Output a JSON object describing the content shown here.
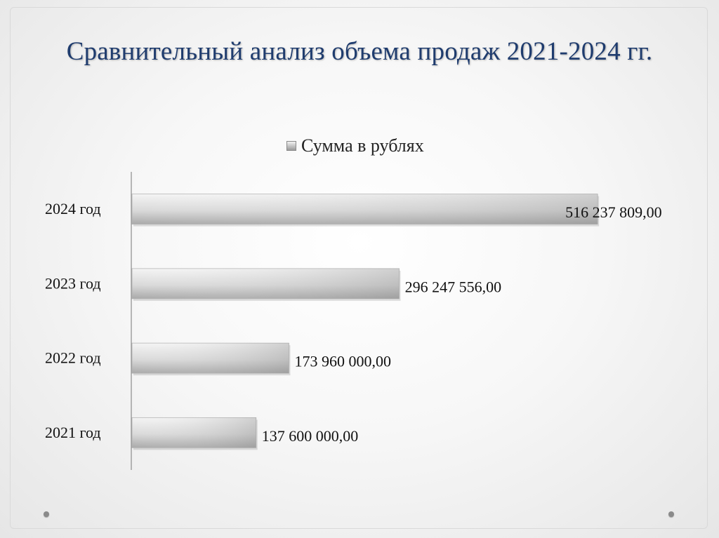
{
  "slide": {
    "title": "Сравнительный анализ объема продаж 2021-2024 гг."
  },
  "chart_data": {
    "type": "bar",
    "orientation": "horizontal",
    "categories": [
      "2024 год",
      "2023 год",
      "2022 год",
      "2021 год"
    ],
    "series": [
      {
        "name": "Сумма в рублях",
        "values": [
          516237809.0,
          296247556.0,
          173960000.0,
          137600000.0
        ],
        "labels": [
          "516 237 809,00",
          "296 247 556,00",
          "173 960 000,00",
          "137 600 000,00"
        ]
      }
    ],
    "xlim": [
      0,
      520000000
    ],
    "grid": false,
    "legend": "top"
  }
}
